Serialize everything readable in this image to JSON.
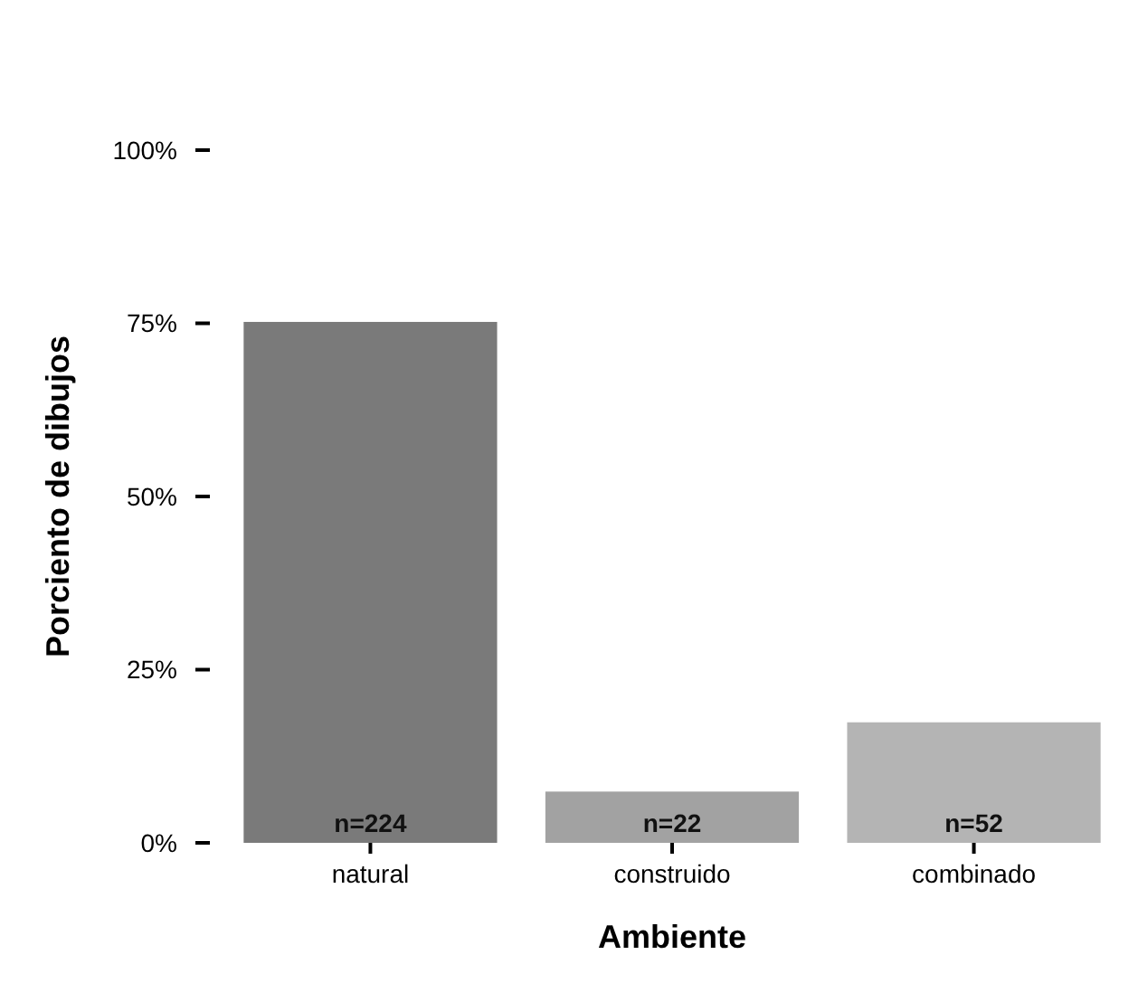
{
  "chart_data": {
    "type": "bar",
    "xlabel": "Ambiente",
    "ylabel": "Porciento de dibujos",
    "categories": [
      "natural",
      "construido",
      "combinado"
    ],
    "values": [
      75.2,
      7.4,
      17.4
    ],
    "colors": [
      "#7a7a7a",
      "#a2a2a2",
      "#b4b4b4"
    ],
    "annotations": [
      "n=224",
      "n=22",
      "n=52"
    ],
    "ylim": [
      0,
      100
    ],
    "yticks": [
      {
        "value": 0,
        "label": "0%"
      },
      {
        "value": 25,
        "label": "25%"
      },
      {
        "value": 50,
        "label": "50%"
      },
      {
        "value": 75,
        "label": "75%"
      },
      {
        "value": 100,
        "label": "100%"
      }
    ],
    "grid": false
  }
}
